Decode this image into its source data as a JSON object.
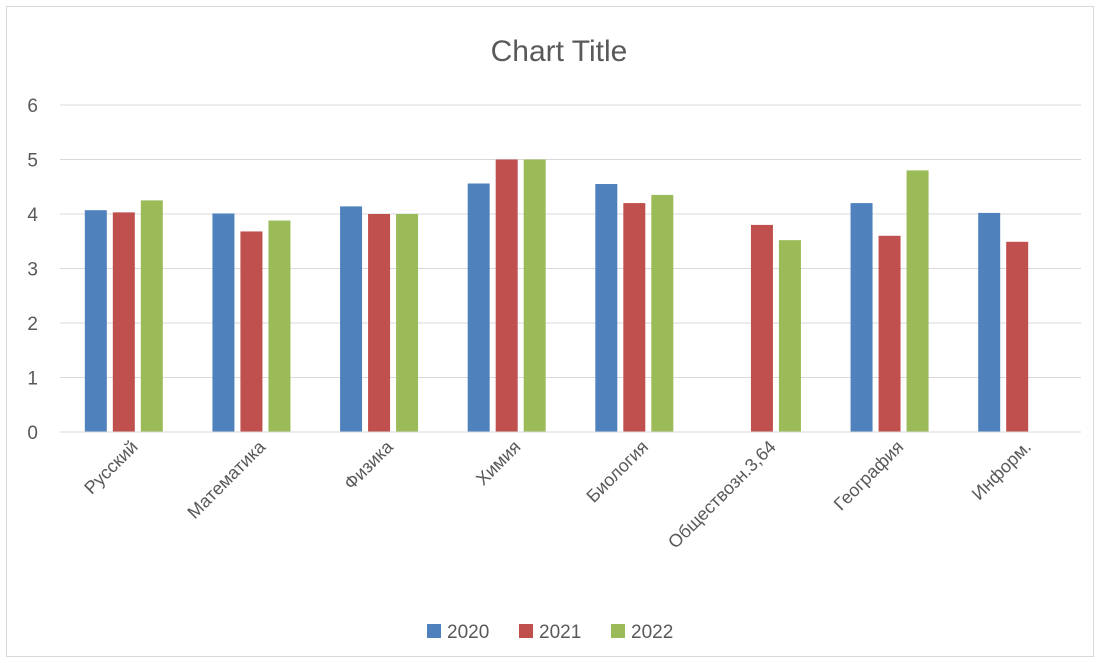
{
  "chart_data": {
    "type": "bar",
    "title": "Chart Title",
    "categories": [
      "Русский",
      "Математика",
      "Физика",
      "Химия",
      "Биология",
      "Обществозн.3,64",
      "География",
      "Информ."
    ],
    "series": [
      {
        "name": "2020",
        "color": "#4f81bd",
        "values": [
          4.07,
          4.01,
          4.14,
          4.56,
          4.55,
          null,
          4.2,
          4.02
        ]
      },
      {
        "name": "2021",
        "color": "#c0504d",
        "values": [
          4.03,
          3.68,
          4.0,
          5.0,
          4.2,
          3.8,
          3.6,
          3.49
        ]
      },
      {
        "name": "2022",
        "color": "#9bbb59",
        "values": [
          4.25,
          3.88,
          4.0,
          5.0,
          4.35,
          3.52,
          4.8,
          null
        ]
      }
    ],
    "ylim": [
      0,
      6
    ],
    "yticks": [
      0,
      1,
      2,
      3,
      4,
      5,
      6
    ],
    "grid": true,
    "legend_position": "bottom",
    "xlabel": "",
    "ylabel": ""
  }
}
